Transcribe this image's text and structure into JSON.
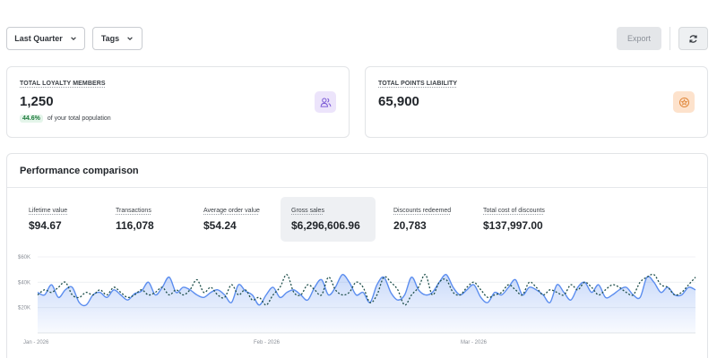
{
  "toolbar": {
    "quarter_label": "Last Quarter",
    "tags_label": "Tags",
    "export_label": "Export",
    "icons": {
      "chevron": "chevron-down-icon",
      "refresh": "refresh-icon"
    }
  },
  "cards": {
    "members": {
      "label": "TOTAL LOYALTY MEMBERS",
      "value": "1,250",
      "badge": "44.6%",
      "sub_text": "of your total population",
      "icon": "users-icon",
      "icon_color": "#7b5bd6"
    },
    "points": {
      "label": "TOTAL POINTS LIABILITY",
      "value": "65,900",
      "icon": "coin-icon",
      "icon_color": "#e0873a"
    }
  },
  "performance": {
    "title": "Performance comparison",
    "metrics": [
      {
        "label": "Lifetime value",
        "value": "$94.67"
      },
      {
        "label": "Transactions",
        "value": "116,078"
      },
      {
        "label": "Average order value",
        "value": "$54.24"
      },
      {
        "label": "Gross sales",
        "value": "$6,296,606.96"
      },
      {
        "label": "Discounts redeemed",
        "value": "20,783"
      },
      {
        "label": "Total cost of discounts",
        "value": "$137,997.00"
      }
    ],
    "active_metric": "Gross sales"
  },
  "chart_data": {
    "type": "area",
    "y_ticks": [
      "$60K",
      "$40K",
      "$20K"
    ],
    "x_ticks": [
      "Jan - 2026",
      "Feb - 2026",
      "Mar - 2026"
    ],
    "ylim": [
      0,
      60000
    ],
    "grid": true,
    "series": [
      {
        "style": "solid-area",
        "color": "#5b8def",
        "values": [
          32000,
          30000,
          38000,
          28000,
          34000,
          36000,
          24000,
          22000,
          30000,
          32000,
          28000,
          34000,
          30000,
          26000,
          31000,
          33000,
          40000,
          30000,
          36000,
          44000,
          32000,
          36000,
          34000,
          30000,
          28000,
          32000,
          34000,
          30000,
          24000,
          38000,
          33000,
          30000,
          22000,
          30000,
          36000,
          28000,
          32000,
          34000,
          30000,
          26000,
          36000,
          42000,
          30000,
          36000,
          46000,
          40000,
          30000,
          32000,
          24000,
          38000,
          44000,
          32000,
          26000,
          30000,
          44000,
          34000,
          30000,
          32000,
          40000,
          46000,
          36000,
          30000,
          34000,
          38000,
          28000,
          24000,
          32000,
          30000,
          36000,
          42000,
          30000,
          36000,
          34000,
          30000,
          24000,
          38000,
          32000,
          26000,
          36000,
          40000,
          32000,
          38000,
          28000,
          30000,
          34000,
          36000,
          30000,
          28000,
          44000,
          40000,
          32000,
          36000,
          30000,
          30000,
          36000,
          34000
        ]
      },
      {
        "style": "dotted-line",
        "color": "#1d4e4a",
        "values": [
          30000,
          34000,
          32000,
          36000,
          40000,
          30000,
          28000,
          32000,
          30000,
          34000,
          30000,
          36000,
          32000,
          28000,
          30000,
          34000,
          30000,
          32000,
          36000,
          30000,
          34000,
          30000,
          34000,
          42000,
          32000,
          36000,
          30000,
          28000,
          38000,
          30000,
          34000,
          26000,
          28000,
          22000,
          30000,
          36000,
          46000,
          32000,
          30000,
          38000,
          34000,
          30000,
          44000,
          34000,
          30000,
          32000,
          40000,
          36000,
          24000,
          30000,
          44000,
          40000,
          34000,
          22000,
          30000,
          36000,
          46000,
          30000,
          40000,
          42000,
          32000,
          30000,
          36000,
          40000,
          34000,
          28000,
          30000,
          32000,
          38000,
          34000,
          30000,
          40000,
          36000,
          30000,
          34000,
          32000,
          30000,
          38000,
          34000,
          40000,
          36000,
          30000,
          34000,
          38000,
          36000,
          32000,
          30000,
          40000,
          44000,
          46000,
          38000,
          36000,
          30000,
          32000,
          38000,
          44000
        ]
      }
    ]
  }
}
